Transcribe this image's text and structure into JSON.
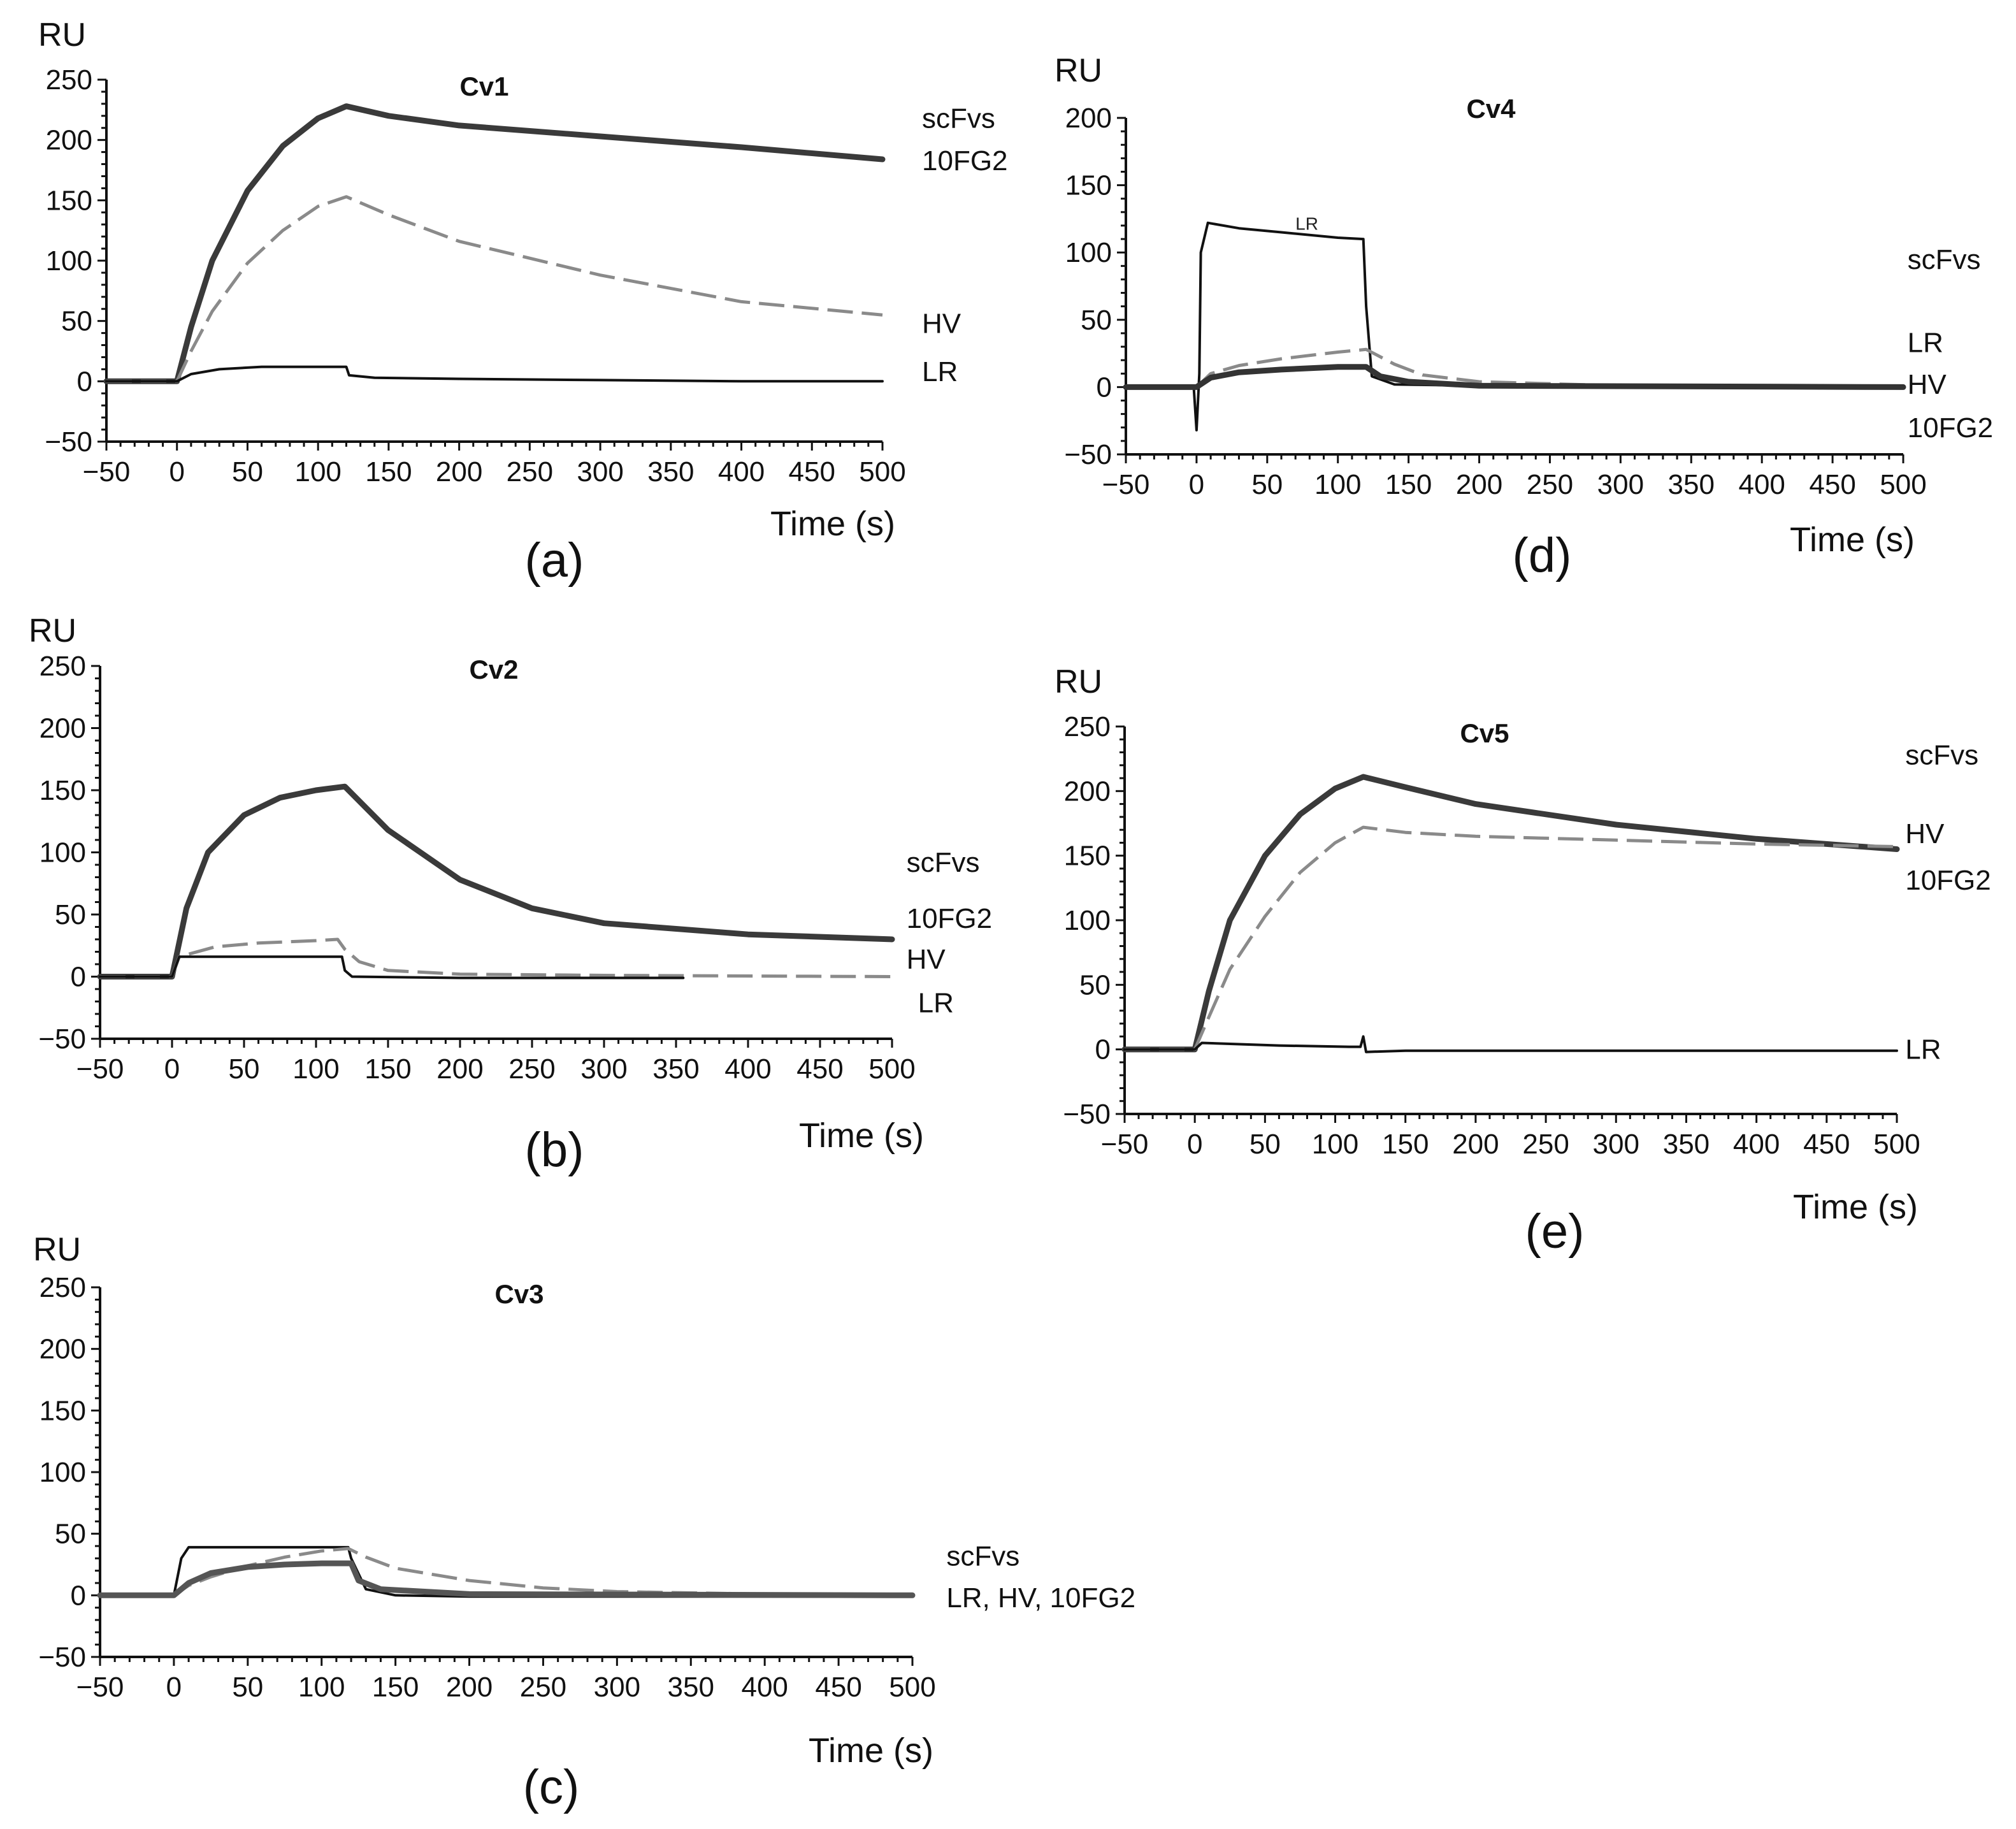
{
  "chart_data": [
    {
      "id": "a",
      "type": "line",
      "title": "Cv1",
      "panel_label": "(a)",
      "ylabel": "RU",
      "xlabel": "Time (s)",
      "xlim": [
        -50,
        500
      ],
      "ylim": [
        -50,
        250
      ],
      "xticks": [
        -50,
        0,
        50,
        100,
        150,
        200,
        250,
        300,
        350,
        400,
        450,
        500
      ],
      "xtick_labels": [
        "−50",
        "0",
        "50",
        "100",
        "150",
        "200",
        "250",
        "300",
        "350",
        "400",
        "450",
        "500"
      ],
      "yticks": [
        -50,
        0,
        50,
        100,
        150,
        200,
        250
      ],
      "ytick_labels": [
        "−50",
        "0",
        "50",
        "100",
        "150",
        "200",
        "250"
      ],
      "legend_title": "scFvs",
      "series": [
        {
          "name": "10FG2",
          "style": "thick",
          "color": "#3a3a3a",
          "x": [
            -50,
            0,
            10,
            25,
            50,
            75,
            100,
            120,
            150,
            200,
            300,
            400,
            500
          ],
          "y": [
            0,
            0,
            45,
            100,
            158,
            195,
            218,
            228,
            220,
            212,
            203,
            194,
            184
          ]
        },
        {
          "name": "HV",
          "style": "dashed",
          "color": "#8a8a8a",
          "x": [
            -50,
            0,
            10,
            25,
            50,
            75,
            100,
            120,
            150,
            200,
            300,
            400,
            500
          ],
          "y": [
            0,
            0,
            25,
            58,
            98,
            125,
            145,
            153,
            138,
            116,
            88,
            66,
            55
          ]
        },
        {
          "name": "LR",
          "style": "thin",
          "color": "#111111",
          "x": [
            -50,
            0,
            10,
            30,
            60,
            100,
            120,
            122,
            140,
            200,
            300,
            400,
            500
          ],
          "y": [
            0,
            0,
            6,
            10,
            12,
            12,
            12,
            5,
            3,
            2,
            1,
            0,
            0
          ]
        }
      ],
      "labels": [
        {
          "text": "scFvs",
          "x": 528,
          "y": 218
        },
        {
          "text": "10FG2",
          "x": 528,
          "y": 183
        },
        {
          "text": "HV",
          "x": 528,
          "y": 48
        },
        {
          "text": "LR",
          "x": 528,
          "y": 8
        }
      ]
    },
    {
      "id": "b",
      "type": "line",
      "title": "Cv2",
      "panel_label": "(b)",
      "ylabel": "RU",
      "xlabel": "Time (s)",
      "xlim": [
        -50,
        500
      ],
      "ylim": [
        -50,
        250
      ],
      "xticks": [
        -50,
        0,
        50,
        100,
        150,
        200,
        250,
        300,
        350,
        400,
        450,
        500
      ],
      "xtick_labels": [
        "−50",
        "0",
        "50",
        "100",
        "150",
        "200",
        "250",
        "300",
        "350",
        "400",
        "450",
        "500"
      ],
      "yticks": [
        -50,
        0,
        50,
        100,
        150,
        200,
        250
      ],
      "ytick_labels": [
        "−50",
        "0",
        "50",
        "100",
        "150",
        "200",
        "250"
      ],
      "legend_title": "scFvs",
      "series": [
        {
          "name": "10FG2",
          "style": "thick",
          "color": "#3a3a3a",
          "x": [
            -50,
            0,
            10,
            25,
            50,
            75,
            100,
            120,
            150,
            200,
            250,
            300,
            400,
            500
          ],
          "y": [
            0,
            0,
            55,
            100,
            130,
            144,
            150,
            153,
            118,
            78,
            55,
            43,
            34,
            30
          ]
        },
        {
          "name": "HV",
          "style": "dashed",
          "color": "#8a8a8a",
          "x": [
            -50,
            0,
            5,
            30,
            60,
            100,
            115,
            120,
            130,
            150,
            200,
            300,
            500
          ],
          "y": [
            0,
            0,
            16,
            24,
            27,
            29,
            30,
            22,
            12,
            5,
            2,
            1,
            0
          ]
        },
        {
          "name": "LR",
          "style": "thin",
          "color": "#111111",
          "x": [
            -50,
            0,
            5,
            60,
            118,
            120,
            125,
            200,
            355
          ],
          "y": [
            0,
            0,
            16,
            16,
            16,
            5,
            0,
            -1,
            -1
          ]
        }
      ],
      "labels": [
        {
          "text": "scFvs",
          "x": 510,
          "y": 92
        },
        {
          "text": "10FG2",
          "x": 510,
          "y": 47
        },
        {
          "text": "HV",
          "x": 510,
          "y": 14
        },
        {
          "text": "LR",
          "x": 518,
          "y": -21
        }
      ]
    },
    {
      "id": "c",
      "type": "line",
      "title": "Cv3",
      "panel_label": "(c)",
      "ylabel": "RU",
      "xlabel": "Time (s)",
      "xlim": [
        -50,
        500
      ],
      "ylim": [
        -50,
        250
      ],
      "xticks": [
        -50,
        0,
        50,
        100,
        150,
        200,
        250,
        300,
        350,
        400,
        450,
        500
      ],
      "xtick_labels": [
        "−50",
        "0",
        "50",
        "100",
        "150",
        "200",
        "250",
        "300",
        "350",
        "400",
        "450",
        "500"
      ],
      "yticks": [
        -50,
        0,
        50,
        100,
        150,
        200,
        250
      ],
      "ytick_labels": [
        "−50",
        "0",
        "50",
        "100",
        "150",
        "200",
        "250"
      ],
      "legend_title": "scFvs",
      "series": [
        {
          "name": "LR",
          "style": "thin",
          "color": "#111111",
          "x": [
            -50,
            0,
            5,
            10,
            60,
            118,
            120,
            130,
            150,
            200,
            500
          ],
          "y": [
            0,
            0,
            30,
            39,
            39,
            39,
            30,
            5,
            0,
            -1,
            -1
          ]
        },
        {
          "name": "HV",
          "style": "dashed",
          "color": "#8a8a8a",
          "x": [
            -50,
            0,
            10,
            25,
            50,
            75,
            100,
            118,
            130,
            150,
            200,
            250,
            300,
            400,
            500
          ],
          "y": [
            0,
            0,
            8,
            15,
            24,
            31,
            36,
            38,
            31,
            22,
            12,
            6,
            3,
            1,
            0
          ]
        },
        {
          "name": "10FG2",
          "style": "thick",
          "color": "#555555",
          "x": [
            -50,
            0,
            10,
            25,
            50,
            75,
            100,
            120,
            125,
            140,
            200,
            500
          ],
          "y": [
            0,
            0,
            10,
            18,
            23,
            25,
            26,
            26,
            12,
            5,
            1,
            0
          ]
        }
      ],
      "labels": [
        {
          "text": "scFvs",
          "x": 523,
          "y": 32
        },
        {
          "text": "LR, HV, 10FG2",
          "x": 523,
          "y": -2
        }
      ]
    },
    {
      "id": "d",
      "type": "line",
      "title": "Cv4",
      "panel_label": "(d)",
      "ylabel": "RU",
      "xlabel": "Time (s)",
      "xlim": [
        -50,
        500
      ],
      "ylim": [
        -50,
        200
      ],
      "xticks": [
        -50,
        0,
        50,
        100,
        150,
        200,
        250,
        300,
        350,
        400,
        450,
        500
      ],
      "xtick_labels": [
        "−50",
        "0",
        "50",
        "100",
        "150",
        "200",
        "250",
        "300",
        "350",
        "400",
        "450",
        "500"
      ],
      "yticks": [
        -50,
        0,
        50,
        100,
        150,
        200
      ],
      "ytick_labels": [
        "−50",
        "0",
        "50",
        "100",
        "150",
        "200"
      ],
      "legend_title": "scFvs",
      "series": [
        {
          "name": "LR",
          "style": "thin",
          "color": "#111111",
          "x": [
            -50,
            -2,
            0,
            2,
            3,
            8,
            30,
            60,
            100,
            118,
            120,
            124,
            140,
            200,
            500
          ],
          "y": [
            0,
            0,
            -32,
            10,
            100,
            122,
            118,
            115,
            111,
            110,
            60,
            8,
            2,
            1,
            0
          ]
        },
        {
          "name": "HV",
          "style": "dashed",
          "color": "#8a8a8a",
          "x": [
            -50,
            0,
            10,
            30,
            60,
            100,
            120,
            140,
            160,
            200,
            300,
            500
          ],
          "y": [
            0,
            0,
            10,
            16,
            21,
            26,
            28,
            17,
            9,
            4,
            1,
            0
          ]
        },
        {
          "name": "10FG2",
          "style": "thick",
          "color": "#333333",
          "x": [
            -50,
            0,
            10,
            30,
            60,
            100,
            120,
            130,
            150,
            200,
            500
          ],
          "y": [
            0,
            0,
            7,
            11,
            13,
            15,
            15,
            8,
            4,
            1,
            0
          ]
        }
      ],
      "annotations": [
        {
          "text": "LR",
          "x": 70,
          "y": 117
        }
      ],
      "labels": [
        {
          "text": "scFvs",
          "x": 503,
          "y": 95
        },
        {
          "text": "LR",
          "x": 503,
          "y": 33
        },
        {
          "text": "HV",
          "x": 503,
          "y": 2
        },
        {
          "text": "10FG2",
          "x": 503,
          "y": -30
        }
      ]
    },
    {
      "id": "e",
      "type": "line",
      "title": "Cv5",
      "panel_label": "(e)",
      "ylabel": "RU",
      "xlabel": "Time (s)",
      "xlim": [
        -50,
        500
      ],
      "ylim": [
        -50,
        250
      ],
      "xticks": [
        -50,
        0,
        50,
        100,
        150,
        200,
        250,
        300,
        350,
        400,
        450,
        500
      ],
      "xtick_labels": [
        "−50",
        "0",
        "50",
        "100",
        "150",
        "200",
        "250",
        "300",
        "350",
        "400",
        "450",
        "500"
      ],
      "yticks": [
        -50,
        0,
        50,
        100,
        150,
        200,
        250
      ],
      "ytick_labels": [
        "−50",
        "0",
        "50",
        "100",
        "150",
        "200",
        "250"
      ],
      "legend_title": "scFvs",
      "series": [
        {
          "name": "10FG2",
          "style": "thick",
          "color": "#3a3a3a",
          "x": [
            -50,
            0,
            10,
            25,
            50,
            75,
            100,
            120,
            150,
            200,
            300,
            400,
            500
          ],
          "y": [
            0,
            0,
            45,
            100,
            150,
            182,
            202,
            211,
            203,
            190,
            174,
            163,
            155
          ]
        },
        {
          "name": "HV",
          "style": "dashed",
          "color": "#8a8a8a",
          "x": [
            -50,
            0,
            10,
            25,
            50,
            75,
            100,
            120,
            150,
            200,
            300,
            400,
            500
          ],
          "y": [
            0,
            0,
            25,
            62,
            103,
            137,
            160,
            172,
            168,
            165,
            162,
            159,
            157
          ]
        },
        {
          "name": "LR",
          "style": "thin",
          "color": "#111111",
          "x": [
            -50,
            0,
            5,
            60,
            110,
            118,
            120,
            122,
            150,
            300,
            500
          ],
          "y": [
            0,
            0,
            5,
            3,
            2,
            2,
            10,
            -2,
            -1,
            -1,
            -1
          ]
        }
      ],
      "labels": [
        {
          "text": "scFvs",
          "x": 506,
          "y": 228
        },
        {
          "text": "HV",
          "x": 506,
          "y": 167
        },
        {
          "text": "10FG2",
          "x": 506,
          "y": 131
        },
        {
          "text": "LR",
          "x": 506,
          "y": 0
        }
      ]
    }
  ]
}
